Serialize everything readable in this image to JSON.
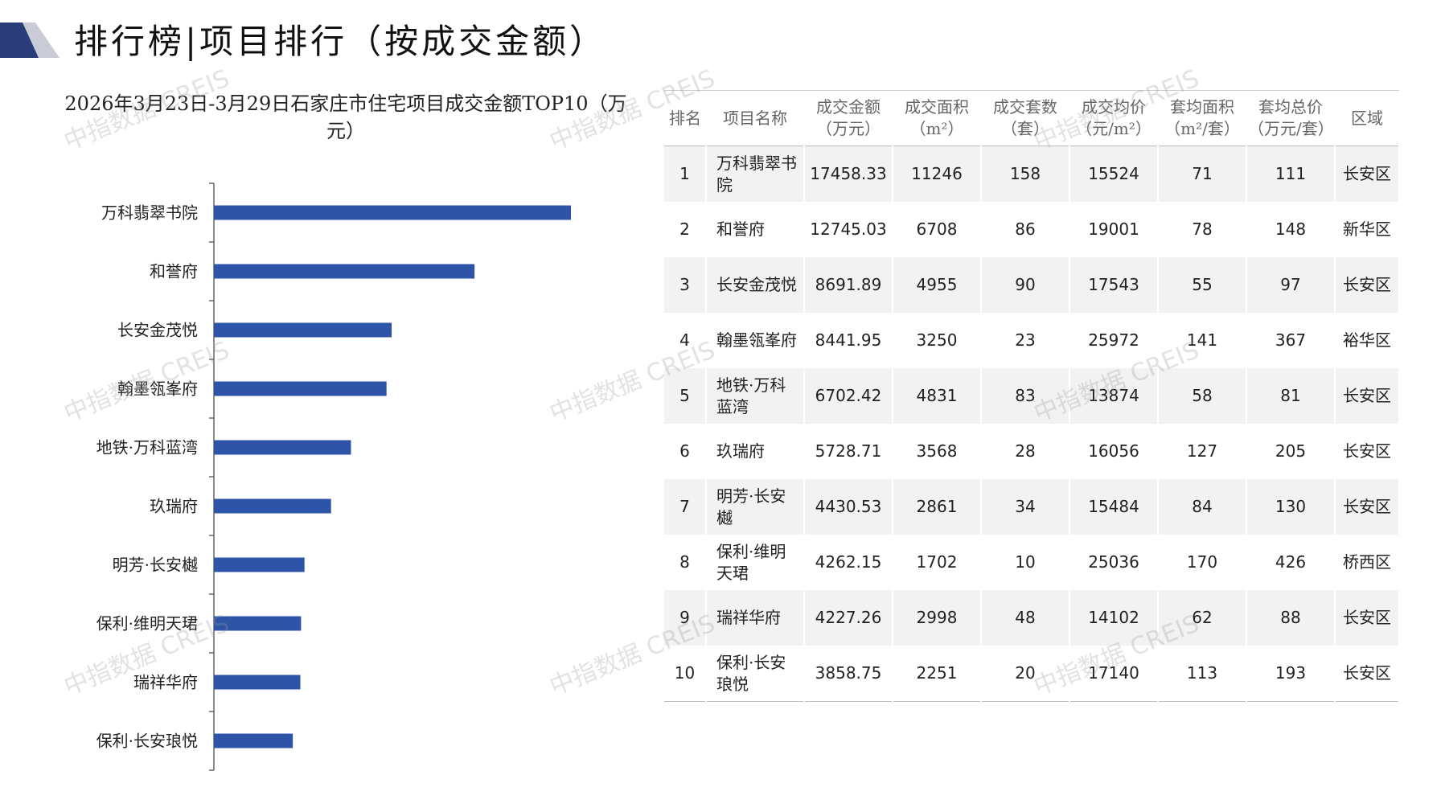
{
  "header": {
    "title": "排行榜|项目排行（按成交金额）"
  },
  "chart_title": "2026年3月23日-3月29日石家庄市住宅项目成交金额TOP10（万元）",
  "watermark": "中指数据 CREIS",
  "colors": {
    "bar": "#2e54a8",
    "brand_dark": "#2a3d7a",
    "brand_light": "#c9ccd6"
  },
  "chart_data": {
    "type": "bar",
    "orientation": "horizontal",
    "title": "2026年3月23日-3月29日石家庄市住宅项目成交金额TOP10（万元）",
    "categories": [
      "万科翡翠书院",
      "和誉府",
      "长安金茂悦",
      "翰墨瓴峯府",
      "地铁·万科蓝湾",
      "玖瑞府",
      "明芳·长安樾",
      "保利·维明天珺",
      "瑞祥华府",
      "保利·长安琅悦"
    ],
    "values": [
      17458.33,
      12745.03,
      8691.89,
      8441.95,
      6702.42,
      5728.71,
      4430.53,
      4262.15,
      4227.26,
      3858.75
    ],
    "xlim": [
      0,
      17458.33
    ]
  },
  "table": {
    "headers": [
      "排名",
      "项目名称",
      "成交金额（万元）",
      "成交面积（m²）",
      "成交套数（套）",
      "成交均价（元/m²）",
      "套均面积（m²/套）",
      "套均总价（万元/套）",
      "区域"
    ],
    "rows": [
      [
        "1",
        "万科翡翠书院",
        "17458.33",
        "11246",
        "158",
        "15524",
        "71",
        "111",
        "长安区"
      ],
      [
        "2",
        "和誉府",
        "12745.03",
        "6708",
        "86",
        "19001",
        "78",
        "148",
        "新华区"
      ],
      [
        "3",
        "长安金茂悦",
        "8691.89",
        "4955",
        "90",
        "17543",
        "55",
        "97",
        "长安区"
      ],
      [
        "4",
        "翰墨瓴峯府",
        "8441.95",
        "3250",
        "23",
        "25972",
        "141",
        "367",
        "裕华区"
      ],
      [
        "5",
        "地铁·万科蓝湾",
        "6702.42",
        "4831",
        "83",
        "13874",
        "58",
        "81",
        "长安区"
      ],
      [
        "6",
        "玖瑞府",
        "5728.71",
        "3568",
        "28",
        "16056",
        "127",
        "205",
        "长安区"
      ],
      [
        "7",
        "明芳·长安樾",
        "4430.53",
        "2861",
        "34",
        "15484",
        "84",
        "130",
        "长安区"
      ],
      [
        "8",
        "保利·维明天珺",
        "4262.15",
        "1702",
        "10",
        "25036",
        "170",
        "426",
        "桥西区"
      ],
      [
        "9",
        "瑞祥华府",
        "4227.26",
        "2998",
        "48",
        "14102",
        "62",
        "88",
        "长安区"
      ],
      [
        "10",
        "保利·长安琅悦",
        "3858.75",
        "2251",
        "20",
        "17140",
        "113",
        "193",
        "长安区"
      ]
    ]
  }
}
